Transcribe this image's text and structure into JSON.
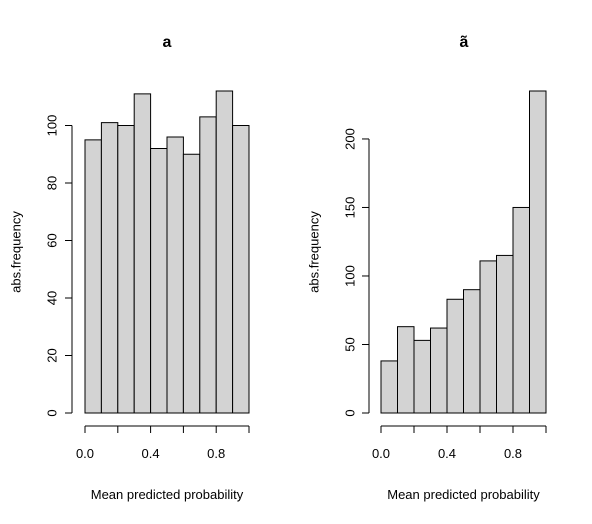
{
  "chart_data": [
    {
      "type": "bar",
      "title": "a",
      "xlabel": "Mean predicted probability",
      "ylabel": "abs.frequency",
      "bin_edges": [
        0.0,
        0.1,
        0.2,
        0.3,
        0.4,
        0.5,
        0.6,
        0.7,
        0.8,
        0.9,
        1.0
      ],
      "values": [
        95,
        101,
        100,
        111,
        92,
        96,
        90,
        103,
        112,
        100
      ],
      "xlim": [
        0,
        1
      ],
      "ylim": [
        0,
        112
      ],
      "x_ticks": [
        0.0,
        0.2,
        0.4,
        0.6,
        0.8,
        1.0
      ],
      "x_tick_labels": [
        "0.0",
        "",
        "0.4",
        "",
        "0.8",
        ""
      ],
      "y_ticks": [
        0,
        20,
        40,
        60,
        80,
        100
      ],
      "y_tick_labels": [
        "0",
        "20",
        "40",
        "60",
        "80",
        "100"
      ],
      "bar_color": "#d3d3d3"
    },
    {
      "type": "bar",
      "title": "ã",
      "xlabel": "Mean predicted probability",
      "ylabel": "abs.frequency",
      "bin_edges": [
        0.0,
        0.1,
        0.2,
        0.3,
        0.4,
        0.5,
        0.6,
        0.7,
        0.8,
        0.9,
        1.0
      ],
      "values": [
        38,
        63,
        53,
        62,
        83,
        90,
        111,
        115,
        150,
        235
      ],
      "xlim": [
        0,
        1
      ],
      "ylim": [
        0,
        235
      ],
      "x_ticks": [
        0.0,
        0.2,
        0.4,
        0.6,
        0.8,
        1.0
      ],
      "x_tick_labels": [
        "0.0",
        "",
        "0.4",
        "",
        "0.8",
        ""
      ],
      "y_ticks": [
        0,
        50,
        100,
        150,
        200
      ],
      "y_tick_labels": [
        "0",
        "50",
        "100",
        "150",
        "200"
      ],
      "bar_color": "#d3d3d3"
    }
  ]
}
